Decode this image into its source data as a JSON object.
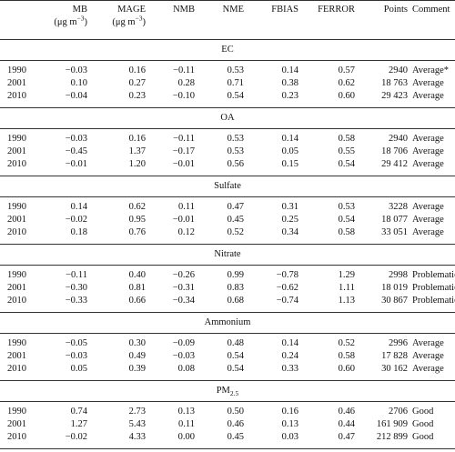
{
  "header": {
    "columns": [
      {
        "name": "MB",
        "unit": [
          "(μg m",
          "−3",
          ")"
        ]
      },
      {
        "name": "MAGE",
        "unit": [
          "(μg m",
          "−3",
          ")"
        ]
      },
      {
        "name": "NMB"
      },
      {
        "name": "NME"
      },
      {
        "name": "FBIAS"
      },
      {
        "name": "FERROR"
      },
      {
        "name": "Points"
      },
      {
        "name": "Comment"
      }
    ]
  },
  "groups": [
    {
      "title": [
        "EC"
      ],
      "rows": [
        [
          "1990",
          "−0.03",
          "0.16",
          "−0.11",
          "0.53",
          "0.14",
          "0.57",
          "2940",
          "Average*"
        ],
        [
          "2001",
          "0.10",
          "0.27",
          "0.28",
          "0.71",
          "0.38",
          "0.62",
          "18 763",
          "Average"
        ],
        [
          "2010",
          "−0.04",
          "0.23",
          "−0.10",
          "0.54",
          "0.23",
          "0.60",
          "29 423",
          "Average"
        ]
      ]
    },
    {
      "title": [
        "OA"
      ],
      "rows": [
        [
          "1990",
          "−0.03",
          "0.16",
          "−0.11",
          "0.53",
          "0.14",
          "0.58",
          "2940",
          "Average"
        ],
        [
          "2001",
          "−0.45",
          "1.37",
          "−0.17",
          "0.53",
          "0.05",
          "0.55",
          "18 706",
          "Average"
        ],
        [
          "2010",
          "−0.01",
          "1.20",
          "−0.01",
          "0.56",
          "0.15",
          "0.54",
          "29 412",
          "Average"
        ]
      ]
    },
    {
      "title": [
        "Sulfate"
      ],
      "rows": [
        [
          "1990",
          "0.14",
          "0.62",
          "0.11",
          "0.47",
          "0.31",
          "0.53",
          "3228",
          "Average"
        ],
        [
          "2001",
          "−0.02",
          "0.95",
          "−0.01",
          "0.45",
          "0.25",
          "0.54",
          "18 077",
          "Average"
        ],
        [
          "2010",
          "0.18",
          "0.76",
          "0.12",
          "0.52",
          "0.34",
          "0.58",
          "33 051",
          "Average"
        ]
      ]
    },
    {
      "title": [
        "Nitrate"
      ],
      "rows": [
        [
          "1990",
          "−0.11",
          "0.40",
          "−0.26",
          "0.99",
          "−0.78",
          "1.29",
          "2998",
          "Problematic"
        ],
        [
          "2001",
          "−0.30",
          "0.81",
          "−0.31",
          "0.83",
          "−0.62",
          "1.11",
          "18 019",
          "Problematic"
        ],
        [
          "2010",
          "−0.33",
          "0.66",
          "−0.34",
          "0.68",
          "−0.74",
          "1.13",
          "30 867",
          "Problematic"
        ]
      ]
    },
    {
      "title": [
        "Ammonium"
      ],
      "rows": [
        [
          "1990",
          "−0.05",
          "0.30",
          "−0.09",
          "0.48",
          "0.14",
          "0.52",
          "2996",
          "Average"
        ],
        [
          "2001",
          "−0.03",
          "0.49",
          "−0.03",
          "0.54",
          "0.24",
          "0.58",
          "17 828",
          "Average"
        ],
        [
          "2010",
          "0.05",
          "0.39",
          "0.08",
          "0.54",
          "0.33",
          "0.60",
          "30 162",
          "Average"
        ]
      ]
    },
    {
      "title": [
        "PM",
        "2.5"
      ],
      "rows": [
        [
          "1990",
          "0.74",
          "2.73",
          "0.13",
          "0.50",
          "0.16",
          "0.46",
          "2706",
          "Good"
        ],
        [
          "2001",
          "1.27",
          "5.43",
          "0.11",
          "0.46",
          "0.13",
          "0.44",
          "161 909",
          "Good"
        ],
        [
          "2010",
          "−0.02",
          "4.33",
          "0.00",
          "0.45",
          "0.03",
          "0.47",
          "212 899",
          "Good"
        ]
      ]
    }
  ]
}
